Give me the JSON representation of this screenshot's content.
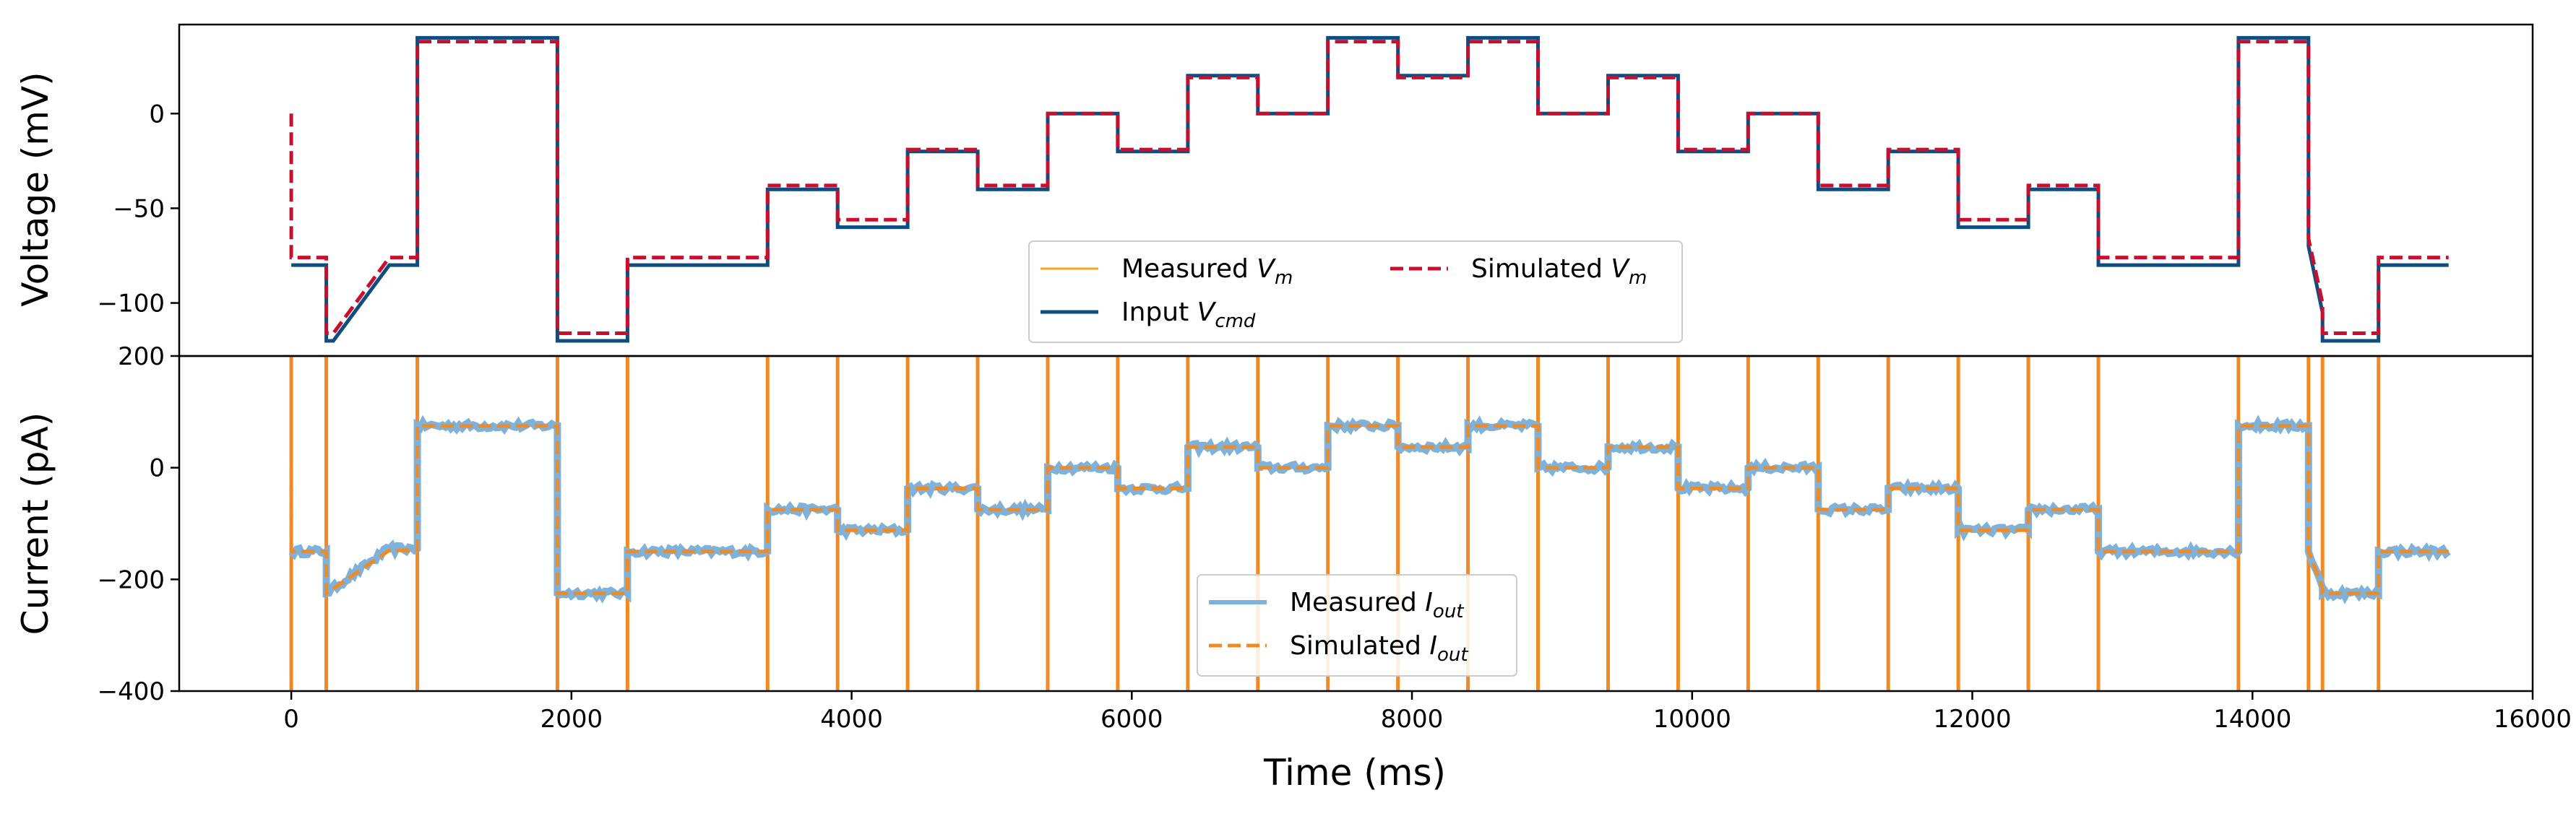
{
  "chart_data": [
    {
      "type": "line",
      "ylabel": "Voltage (mV)",
      "ylim": [
        -128,
        47
      ],
      "xlim": [
        -800,
        16000
      ],
      "yticks": [
        0,
        -50,
        -100
      ],
      "ytick_labels": [
        "0",
        "−50",
        "−100"
      ],
      "legend": {
        "placement": "lower-center",
        "columns": 2,
        "entries": [
          {
            "base": "Measured ",
            "var": "V",
            "sub": "m",
            "color": "#f5a623",
            "dash": "solid",
            "width": 3
          },
          {
            "base": "Input ",
            "var": "V",
            "sub": "cmd",
            "color": "#0f4d80",
            "dash": "solid",
            "width": 5
          },
          {
            "base": "Simulated ",
            "var": "V",
            "sub": "m",
            "color": "#c8102e",
            "dash": "dashed",
            "width": 5
          }
        ]
      },
      "series": [
        {
          "name": "Input Vcmd",
          "color": "#0f4d80",
          "dash": "solid",
          "points": [
            [
              0,
              -80
            ],
            [
              250,
              -80
            ],
            [
              250,
              -120
            ],
            [
              300,
              -120
            ],
            [
              700,
              -80
            ],
            [
              900,
              -80
            ],
            [
              900,
              40
            ],
            [
              1900,
              40
            ],
            [
              1900,
              -120
            ],
            [
              2400,
              -120
            ],
            [
              2400,
              -80
            ],
            [
              3400,
              -80
            ],
            [
              3400,
              -40
            ],
            [
              3900,
              -40
            ],
            [
              3900,
              -60
            ],
            [
              4400,
              -60
            ],
            [
              4400,
              -20
            ],
            [
              4900,
              -20
            ],
            [
              4900,
              -40
            ],
            [
              5400,
              -40
            ],
            [
              5400,
              0
            ],
            [
              5900,
              0
            ],
            [
              5900,
              -20
            ],
            [
              6400,
              -20
            ],
            [
              6400,
              20
            ],
            [
              6900,
              20
            ],
            [
              6900,
              0
            ],
            [
              7400,
              0
            ],
            [
              7400,
              40
            ],
            [
              7900,
              40
            ],
            [
              7900,
              20
            ],
            [
              8400,
              20
            ],
            [
              8400,
              40
            ],
            [
              8900,
              40
            ],
            [
              8900,
              0
            ],
            [
              9400,
              0
            ],
            [
              9400,
              20
            ],
            [
              9900,
              20
            ],
            [
              9900,
              -20
            ],
            [
              10400,
              -20
            ],
            [
              10400,
              0
            ],
            [
              10900,
              0
            ],
            [
              10900,
              -40
            ],
            [
              11400,
              -40
            ],
            [
              11400,
              -20
            ],
            [
              11900,
              -20
            ],
            [
              11900,
              -60
            ],
            [
              12400,
              -60
            ],
            [
              12400,
              -40
            ],
            [
              12900,
              -40
            ],
            [
              12900,
              -80
            ],
            [
              13900,
              -80
            ],
            [
              13900,
              40
            ],
            [
              14400,
              40
            ],
            [
              14400,
              -70
            ],
            [
              14500,
              -105
            ],
            [
              14500,
              -120
            ],
            [
              14900,
              -120
            ],
            [
              14900,
              -80
            ],
            [
              15400,
              -80
            ]
          ]
        },
        {
          "name": "Simulated Vm",
          "color": "#c8102e",
          "dash": "dashed",
          "points": [
            [
              0,
              0
            ],
            [
              0,
              -76
            ],
            [
              250,
              -76
            ],
            [
              250,
              -116
            ],
            [
              300,
              -116
            ],
            [
              700,
              -76
            ],
            [
              900,
              -76
            ],
            [
              900,
              38
            ],
            [
              1900,
              38
            ],
            [
              1900,
              -116
            ],
            [
              2400,
              -116
            ],
            [
              2400,
              -76
            ],
            [
              3400,
              -76
            ],
            [
              3400,
              -38
            ],
            [
              3900,
              -38
            ],
            [
              3900,
              -56
            ],
            [
              4400,
              -56
            ],
            [
              4400,
              -19
            ],
            [
              4900,
              -19
            ],
            [
              4900,
              -38
            ],
            [
              5400,
              -38
            ],
            [
              5400,
              0
            ],
            [
              5900,
              0
            ],
            [
              5900,
              -19
            ],
            [
              6400,
              -19
            ],
            [
              6400,
              19
            ],
            [
              6900,
              19
            ],
            [
              6900,
              0
            ],
            [
              7400,
              0
            ],
            [
              7400,
              38
            ],
            [
              7900,
              38
            ],
            [
              7900,
              19
            ],
            [
              8400,
              19
            ],
            [
              8400,
              38
            ],
            [
              8900,
              38
            ],
            [
              8900,
              0
            ],
            [
              9400,
              0
            ],
            [
              9400,
              19
            ],
            [
              9900,
              19
            ],
            [
              9900,
              -19
            ],
            [
              10400,
              -19
            ],
            [
              10400,
              0
            ],
            [
              10900,
              0
            ],
            [
              10900,
              -38
            ],
            [
              11400,
              -38
            ],
            [
              11400,
              -19
            ],
            [
              11900,
              -19
            ],
            [
              11900,
              -56
            ],
            [
              12400,
              -56
            ],
            [
              12400,
              -38
            ],
            [
              12900,
              -38
            ],
            [
              12900,
              -76
            ],
            [
              13900,
              -76
            ],
            [
              13900,
              38
            ],
            [
              14400,
              38
            ],
            [
              14400,
              -66
            ],
            [
              14500,
              -100
            ],
            [
              14500,
              -116
            ],
            [
              14900,
              -116
            ],
            [
              14900,
              -76
            ],
            [
              15400,
              -76
            ]
          ]
        }
      ]
    },
    {
      "type": "line",
      "xlabel": "Time (ms)",
      "ylabel": "Current (pA)",
      "ylim": [
        -400,
        200
      ],
      "xlim": [
        -800,
        16000
      ],
      "yticks": [
        200,
        0,
        -200,
        -400
      ],
      "ytick_labels": [
        "200",
        "0",
        "−200",
        "−400"
      ],
      "xticks": [
        0,
        2000,
        4000,
        6000,
        8000,
        10000,
        12000,
        14000,
        16000
      ],
      "xtick_labels": [
        "0",
        "2000",
        "4000",
        "6000",
        "8000",
        "10000",
        "12000",
        "14000",
        "16000"
      ],
      "legend": {
        "placement": "lower-center",
        "columns": 1,
        "entries": [
          {
            "base": "Measured ",
            "var": "I",
            "sub": "out",
            "color": "#7fb2da",
            "dash": "solid",
            "width": 6
          },
          {
            "base": "Simulated ",
            "var": "I",
            "sub": "out",
            "color": "#f08a24",
            "dash": "dashed",
            "width": 5
          }
        ]
      },
      "spike_times": [
        0,
        250,
        900,
        1900,
        2400,
        3400,
        3900,
        4400,
        4900,
        5400,
        5900,
        6400,
        6900,
        7400,
        7900,
        8400,
        8900,
        9400,
        9900,
        10400,
        10900,
        11400,
        11900,
        12400,
        12900,
        13900,
        14400,
        14500,
        14900
      ],
      "series": [
        {
          "name": "Measured Iout",
          "color": "#7fb2da",
          "dash": "solid",
          "noise": 6,
          "points": [
            [
              0,
              -150
            ],
            [
              250,
              -150
            ],
            [
              250,
              -225
            ],
            [
              700,
              -145
            ],
            [
              900,
              -145
            ],
            [
              900,
              75
            ],
            [
              1900,
              75
            ],
            [
              1900,
              -225
            ],
            [
              2400,
              -225
            ],
            [
              2400,
              -150
            ],
            [
              3400,
              -150
            ],
            [
              3400,
              -75
            ],
            [
              3900,
              -75
            ],
            [
              3900,
              -112
            ],
            [
              4400,
              -112
            ],
            [
              4400,
              -37
            ],
            [
              4900,
              -37
            ],
            [
              4900,
              -75
            ],
            [
              5400,
              -75
            ],
            [
              5400,
              0
            ],
            [
              5900,
              0
            ],
            [
              5900,
              -37
            ],
            [
              6400,
              -37
            ],
            [
              6400,
              37
            ],
            [
              6900,
              37
            ],
            [
              6900,
              0
            ],
            [
              7400,
              0
            ],
            [
              7400,
              75
            ],
            [
              7900,
              75
            ],
            [
              7900,
              37
            ],
            [
              8400,
              37
            ],
            [
              8400,
              75
            ],
            [
              8900,
              75
            ],
            [
              8900,
              0
            ],
            [
              9400,
              0
            ],
            [
              9400,
              37
            ],
            [
              9900,
              37
            ],
            [
              9900,
              -37
            ],
            [
              10400,
              -37
            ],
            [
              10400,
              0
            ],
            [
              10900,
              0
            ],
            [
              10900,
              -75
            ],
            [
              11400,
              -75
            ],
            [
              11400,
              -37
            ],
            [
              11900,
              -37
            ],
            [
              11900,
              -112
            ],
            [
              12400,
              -112
            ],
            [
              12400,
              -75
            ],
            [
              12900,
              -75
            ],
            [
              12900,
              -150
            ],
            [
              13900,
              -150
            ],
            [
              13900,
              75
            ],
            [
              14400,
              75
            ],
            [
              14400,
              -150
            ],
            [
              14500,
              -215
            ],
            [
              14500,
              -225
            ],
            [
              14900,
              -225
            ],
            [
              14900,
              -150
            ],
            [
              15400,
              -150
            ]
          ]
        },
        {
          "name": "Simulated Iout",
          "color": "#f08a24",
          "dash": "dashed",
          "noise": 0,
          "points": [
            [
              0,
              0
            ],
            [
              0,
              -150
            ],
            [
              250,
              -150
            ],
            [
              250,
              -225
            ],
            [
              700,
              -148
            ],
            [
              900,
              -148
            ],
            [
              900,
              75
            ],
            [
              1900,
              75
            ],
            [
              1900,
              -225
            ],
            [
              2400,
              -225
            ],
            [
              2400,
              -150
            ],
            [
              3400,
              -150
            ],
            [
              3400,
              -75
            ],
            [
              3900,
              -75
            ],
            [
              3900,
              -112
            ],
            [
              4400,
              -112
            ],
            [
              4400,
              -37
            ],
            [
              4900,
              -37
            ],
            [
              4900,
              -75
            ],
            [
              5400,
              -75
            ],
            [
              5400,
              0
            ],
            [
              5900,
              0
            ],
            [
              5900,
              -37
            ],
            [
              6400,
              -37
            ],
            [
              6400,
              37
            ],
            [
              6900,
              37
            ],
            [
              6900,
              0
            ],
            [
              7400,
              0
            ],
            [
              7400,
              75
            ],
            [
              7900,
              75
            ],
            [
              7900,
              37
            ],
            [
              8400,
              37
            ],
            [
              8400,
              75
            ],
            [
              8900,
              75
            ],
            [
              8900,
              0
            ],
            [
              9400,
              0
            ],
            [
              9400,
              37
            ],
            [
              9900,
              37
            ],
            [
              9900,
              -37
            ],
            [
              10400,
              -37
            ],
            [
              10400,
              0
            ],
            [
              10900,
              0
            ],
            [
              10900,
              -75
            ],
            [
              11400,
              -75
            ],
            [
              11400,
              -37
            ],
            [
              11900,
              -37
            ],
            [
              11900,
              -112
            ],
            [
              12400,
              -112
            ],
            [
              12400,
              -75
            ],
            [
              12900,
              -75
            ],
            [
              12900,
              -150
            ],
            [
              13900,
              -150
            ],
            [
              13900,
              75
            ],
            [
              14400,
              75
            ],
            [
              14400,
              -150
            ],
            [
              14500,
              -215
            ],
            [
              14500,
              -225
            ],
            [
              14900,
              -225
            ],
            [
              14900,
              -150
            ],
            [
              15400,
              -150
            ]
          ]
        }
      ]
    }
  ]
}
